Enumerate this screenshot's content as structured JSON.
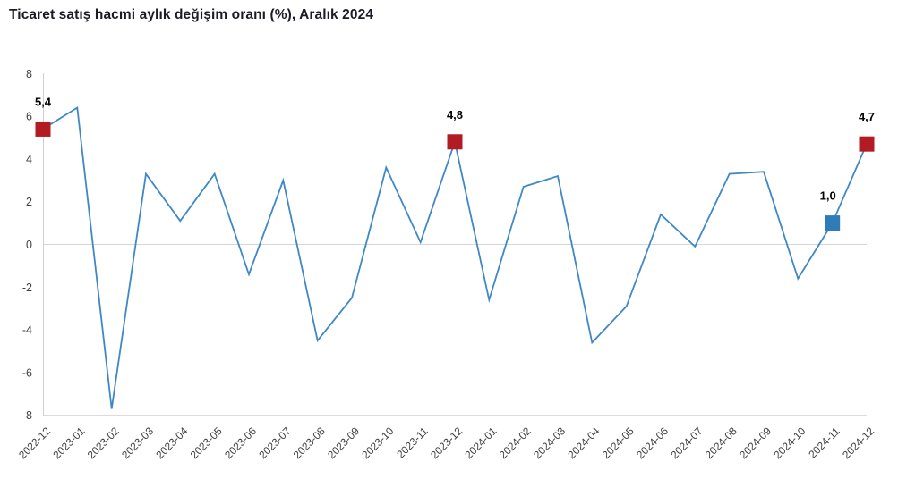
{
  "title": "Ticaret satış hacmi aylık değişim oranı (%), Aralık 2024",
  "colors": {
    "line": "#3f88c5",
    "marker_red": "#b31b22",
    "marker_blue": "#2f7cb8",
    "axis_line": "#d0d0d0",
    "zero_gridline": "#d6d6d6",
    "tick_label": "#404040",
    "data_label": "#000000",
    "title_text": "#1c1c24",
    "background": "#ffffff"
  },
  "chart_data": {
    "type": "line",
    "title": "Ticaret satış hacmi aylık değişim oranı (%), Aralık 2024",
    "x": [
      "2022-12",
      "2023-01",
      "2023-02",
      "2023-03",
      "2023-04",
      "2023-05",
      "2023-06",
      "2023-07",
      "2023-08",
      "2023-09",
      "2023-10",
      "2023-11",
      "2023-12",
      "2024-01",
      "2024-02",
      "2024-03",
      "2024-04",
      "2024-05",
      "2024-06",
      "2024-07",
      "2024-08",
      "2024-09",
      "2024-10",
      "2024-11",
      "2024-12"
    ],
    "values": [
      5.4,
      6.4,
      -7.7,
      3.3,
      1.1,
      3.3,
      -1.4,
      3.0,
      -4.5,
      -2.5,
      3.6,
      0.1,
      4.8,
      -2.6,
      2.7,
      3.2,
      -4.6,
      -2.9,
      1.4,
      -0.1,
      3.3,
      3.4,
      -1.6,
      1.0,
      4.7
    ],
    "ylim": [
      -8,
      8
    ],
    "yticks": [
      8,
      6,
      4,
      2,
      0,
      -2,
      -4,
      -6,
      -8
    ],
    "grid": "zero-line-only",
    "legend": "none",
    "xlabel": "",
    "ylabel": "",
    "labeled_points": [
      {
        "month": "2022-12",
        "value": 5.4,
        "label": "5,4",
        "marker": "red-square"
      },
      {
        "month": "2023-12",
        "value": 4.8,
        "label": "4,8",
        "marker": "red-square"
      },
      {
        "month": "2024-11",
        "value": 1.0,
        "label": "1,0",
        "marker": "blue-square"
      },
      {
        "month": "2024-12",
        "value": 4.7,
        "label": "4,7",
        "marker": "red-square"
      }
    ]
  }
}
